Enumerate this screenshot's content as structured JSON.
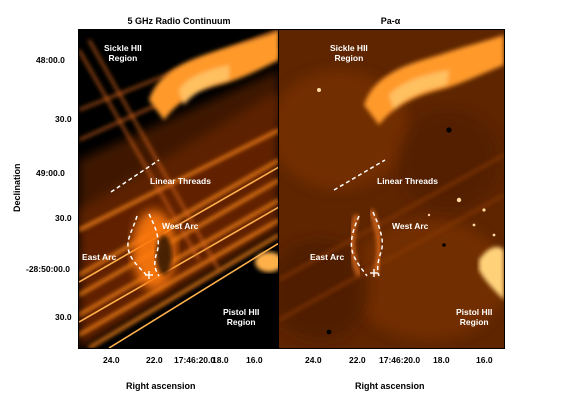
{
  "panels": [
    {
      "title": "5 GHz Radio Continuum",
      "labels": {
        "sickle": "Sickle HII\nRegion",
        "threads": "Linear Threads",
        "west_arc": "West Arc",
        "east_arc": "East Arc",
        "pistol": "Pistol HII\nRegion"
      },
      "xlabel": "Right ascension",
      "xticks": [
        "24.0",
        "22.0",
        "17:46:20.0",
        "18.0",
        "16.0"
      ]
    },
    {
      "title": "Pa-α",
      "labels": {
        "sickle": "Sickle HII\nRegion",
        "threads": "Linear Threads",
        "west_arc": "West Arc",
        "east_arc": "East Arc",
        "pistol": "Pistol HII\nRegion"
      },
      "xlabel": "Right ascension",
      "xticks": [
        "24.0",
        "22.0",
        "17:46:20.0",
        "18.0",
        "16.0"
      ]
    }
  ],
  "ylabel": "Declination",
  "yticks": [
    "48:00.0",
    "30.0",
    "49:00.0",
    "30.0",
    "-28:50:00.0",
    "30.0"
  ],
  "colors": {
    "background_left": "#000000",
    "background_right": "#6a2a00",
    "emission": "#ff8a1e",
    "bright": "#ffd27a"
  }
}
